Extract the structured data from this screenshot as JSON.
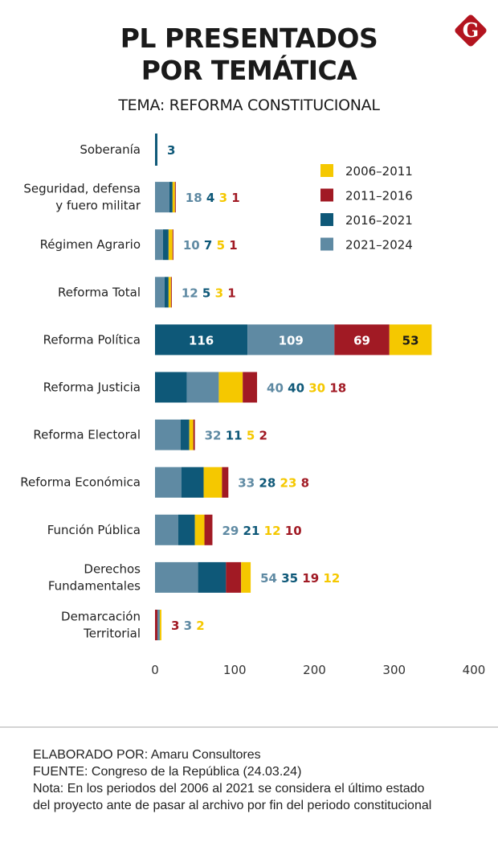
{
  "header": {
    "title_line1": "PL PRESENTADOS",
    "title_line2": "POR TEMÁTICA",
    "subtitle": "TEMA: REFORMA CONSTITUCIONAL",
    "logo_letter": "G"
  },
  "colors": {
    "2006-2011": "#f5c800",
    "2011-2016": "#a11a24",
    "2016-2021": "#0e5878",
    "2021-2024": "#5f8aa3",
    "logo": "#b3141f"
  },
  "chart_data": {
    "type": "bar",
    "orientation": "horizontal",
    "stacked": true,
    "title": "PL PRESENTADOS POR TEMÁTICA",
    "subtitle": "TEMA: REFORMA CONSTITUCIONAL",
    "xlabel": "",
    "ylabel": "",
    "xlim": [
      0,
      400
    ],
    "xticks": [
      "0",
      "100",
      "200",
      "300",
      "400"
    ],
    "grid": false,
    "legend_position": "top-right",
    "legend": [
      "2006-2011",
      "2011-2016",
      "2016-2021",
      "2021-2024"
    ],
    "categories": [
      {
        "label_lines": [
          "Soberanía"
        ],
        "segments": [
          {
            "series": "2016-2021",
            "value": 3
          }
        ]
      },
      {
        "label_lines": [
          "Seguridad, defensa",
          "y fuero militar"
        ],
        "segments": [
          {
            "series": "2021-2024",
            "value": 18
          },
          {
            "series": "2016-2021",
            "value": 4
          },
          {
            "series": "2006-2011",
            "value": 3
          },
          {
            "series": "2011-2016",
            "value": 1
          }
        ]
      },
      {
        "label_lines": [
          "Régimen Agrario"
        ],
        "segments": [
          {
            "series": "2021-2024",
            "value": 10
          },
          {
            "series": "2016-2021",
            "value": 7
          },
          {
            "series": "2006-2011",
            "value": 5
          },
          {
            "series": "2011-2016",
            "value": 1
          }
        ]
      },
      {
        "label_lines": [
          "Reforma Total"
        ],
        "segments": [
          {
            "series": "2021-2024",
            "value": 12
          },
          {
            "series": "2016-2021",
            "value": 5
          },
          {
            "series": "2006-2011",
            "value": 3
          },
          {
            "series": "2011-2016",
            "value": 1
          }
        ]
      },
      {
        "label_lines": [
          "Reforma Política"
        ],
        "labels_inside": true,
        "segments": [
          {
            "series": "2016-2021",
            "value": 116
          },
          {
            "series": "2021-2024",
            "value": 109
          },
          {
            "series": "2011-2016",
            "value": 69
          },
          {
            "series": "2006-2011",
            "value": 53
          }
        ]
      },
      {
        "label_lines": [
          "Reforma Justicia"
        ],
        "segments": [
          {
            "series": "2016-2021",
            "value": 40
          },
          {
            "series": "2021-2024",
            "value": 40
          },
          {
            "series": "2006-2011",
            "value": 30
          },
          {
            "series": "2011-2016",
            "value": 18
          }
        ],
        "label_order": [
          "2021-2024",
          "2016-2021",
          "2006-2011",
          "2011-2016"
        ]
      },
      {
        "label_lines": [
          "Reforma Electoral"
        ],
        "segments": [
          {
            "series": "2021-2024",
            "value": 32
          },
          {
            "series": "2016-2021",
            "value": 11
          },
          {
            "series": "2006-2011",
            "value": 5
          },
          {
            "series": "2011-2016",
            "value": 2
          }
        ]
      },
      {
        "label_lines": [
          "Reforma Económica"
        ],
        "segments": [
          {
            "series": "2021-2024",
            "value": 33
          },
          {
            "series": "2016-2021",
            "value": 28
          },
          {
            "series": "2006-2011",
            "value": 23
          },
          {
            "series": "2011-2016",
            "value": 8
          }
        ]
      },
      {
        "label_lines": [
          "Función Pública"
        ],
        "segments": [
          {
            "series": "2021-2024",
            "value": 29
          },
          {
            "series": "2016-2021",
            "value": 21
          },
          {
            "series": "2006-2011",
            "value": 12
          },
          {
            "series": "2011-2016",
            "value": 10
          }
        ]
      },
      {
        "label_lines": [
          "Derechos",
          "Fundamentales"
        ],
        "segments": [
          {
            "series": "2021-2024",
            "value": 54
          },
          {
            "series": "2016-2021",
            "value": 35
          },
          {
            "series": "2011-2016",
            "value": 19
          },
          {
            "series": "2006-2011",
            "value": 12
          }
        ]
      },
      {
        "label_lines": [
          "Demarcación",
          "Territorial"
        ],
        "segments": [
          {
            "series": "2011-2016",
            "value": 3
          },
          {
            "series": "2021-2024",
            "value": 3
          },
          {
            "series": "2006-2011",
            "value": 2
          }
        ]
      }
    ]
  },
  "footer": {
    "line1": "ELABORADO POR: Amaru Consultores",
    "line2": "FUENTE: Congreso de la República (24.03.24)",
    "line3": "Nota: En los periodos del 2006 al 2021 se considera el último estado",
    "line4": "del proyecto ante de pasar al archivo por fin del periodo constitucional"
  }
}
